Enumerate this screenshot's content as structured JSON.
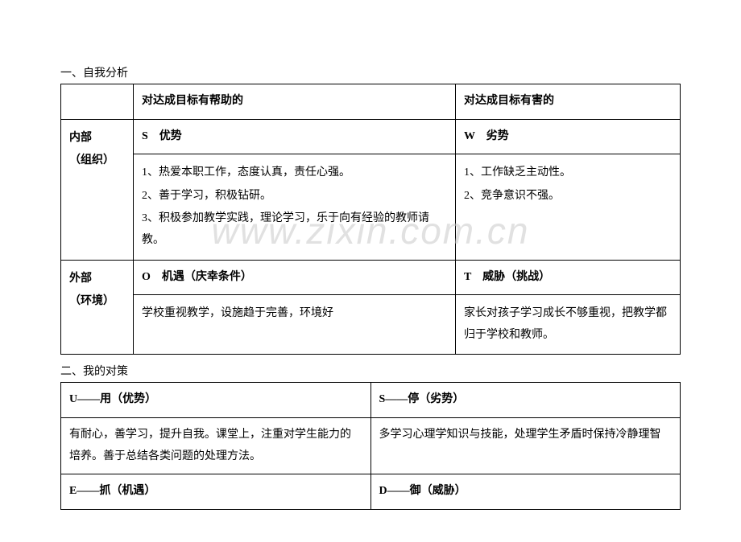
{
  "watermark": "www.zixin.com.cn",
  "section1": {
    "title": "一、自我分析",
    "headers": {
      "col2": "对达成目标有帮助的",
      "col3": "对达成目标有害的"
    },
    "rows": [
      {
        "label_l1": "内部",
        "label_l2": "（组织）",
        "left_title": "S　优势",
        "left_body_1": "1、热爱本职工作，态度认真，责任心强。",
        "left_body_2": "2、善于学习，积极钻研。",
        "left_body_3": "3、积极参加教学实践，理论学习，乐于向有经验的教师请教。",
        "right_title": "W　劣势",
        "right_body_1": "1、工作缺乏主动性。",
        "right_body_2": "2、竞争意识不强。"
      },
      {
        "label_l1": "外部",
        "label_l2": "（环境）",
        "left_title": "O　机遇（庆幸条件）",
        "left_body_1": "学校重视教学，设施趋于完善，环境好",
        "right_title": "T　威胁（挑战）",
        "right_body_1": "家长对孩子学习成长不够重视，把教学都归于学校和教师。"
      }
    ]
  },
  "section2": {
    "title": "二、我的对策",
    "rows": [
      {
        "left_title": "U——用（优势）",
        "right_title": "S——停（劣势）"
      },
      {
        "left_body": "有耐心，善学习，提升自我。课堂上，注重对学生能力的培养。善于总结各类问题的处理方法。",
        "right_body": "多学习心理学知识与技能，处理学生矛盾时保持冷静理智"
      },
      {
        "left_title": "E——抓（机遇）",
        "right_title": "D——御（威胁）"
      }
    ]
  }
}
